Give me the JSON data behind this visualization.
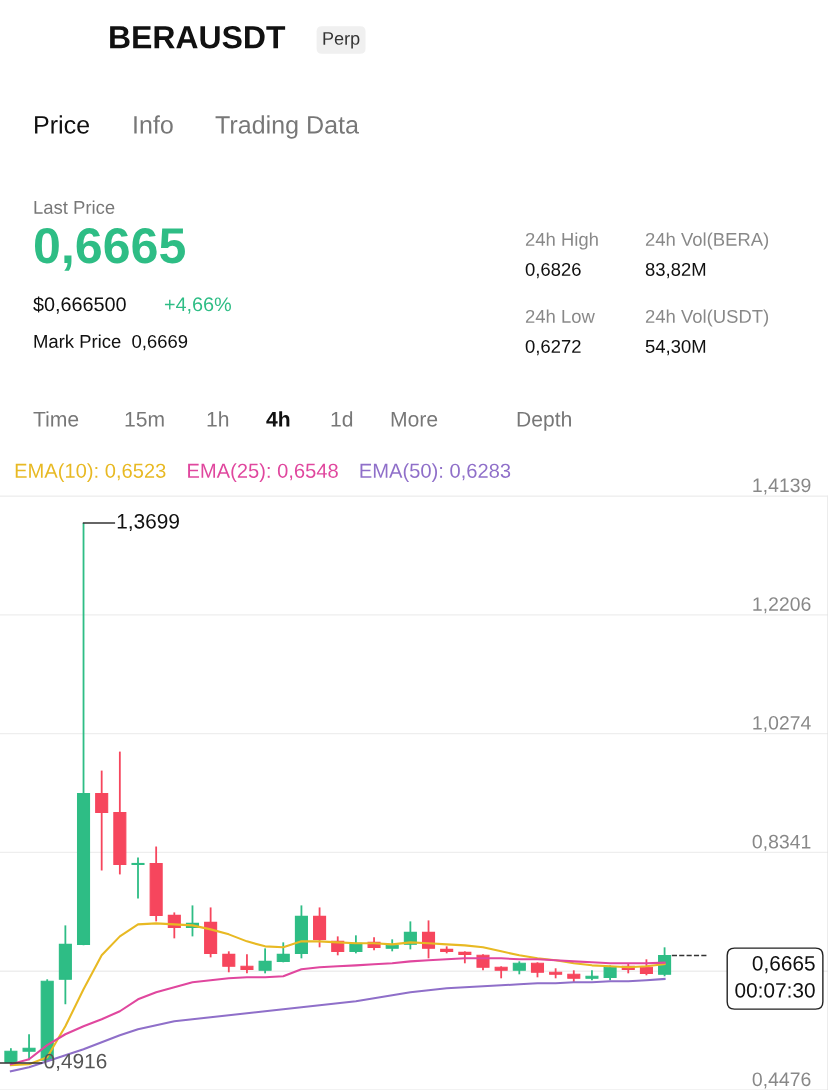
{
  "chart_data": {
    "type": "candlestick",
    "title": "BERAUSDT",
    "subtitle": "Perp",
    "categories": [
      null,
      null,
      null,
      null,
      null,
      null,
      null,
      null,
      null,
      null,
      null,
      null,
      null,
      null,
      null,
      null,
      null,
      null,
      null,
      null,
      null,
      null,
      null,
      null,
      null,
      null,
      null,
      null,
      null,
      null,
      null,
      null,
      null,
      null,
      null,
      null,
      null
    ],
    "ohlc": [
      [
        0.4929,
        0.5156,
        0.4916,
        0.5107
      ],
      [
        0.5107,
        0.5383,
        0.4961,
        0.5156
      ],
      [
        0.4961,
        0.6277,
        0.4961,
        0.6244
      ],
      [
        0.6277,
        0.7154,
        0.5871,
        0.6845
      ],
      [
        0.6845,
        1.3699,
        0.6829,
        0.9298
      ],
      [
        0.9298,
        0.9672,
        0.8047,
        0.899
      ],
      [
        0.899,
        0.9981,
        0.7983,
        0.8145
      ],
      [
        0.8145,
        0.8259,
        0.7593,
        0.8161
      ],
      [
        0.8161,
        0.8437,
        0.7219,
        0.7317
      ],
      [
        0.7317,
        0.7365,
        0.6943,
        0.7122
      ],
      [
        0.7122,
        0.7479,
        0.6975,
        0.7187
      ],
      [
        0.7203,
        0.7446,
        0.6634,
        0.6699
      ],
      [
        0.6683,
        0.6732,
        0.6391,
        0.6488
      ],
      [
        0.6488,
        0.6683,
        0.6374,
        0.6439
      ],
      [
        0.6423,
        0.678,
        0.6374,
        0.6569
      ],
      [
        0.6569,
        0.6878,
        0.6553,
        0.6683
      ],
      [
        0.6699,
        0.7479,
        0.6618,
        0.73
      ],
      [
        0.73,
        0.7446,
        0.6797,
        0.6927
      ],
      [
        0.6894,
        0.6975,
        0.6667,
        0.6732
      ],
      [
        0.6732,
        0.6992,
        0.6699,
        0.6862
      ],
      [
        0.6878,
        0.6959,
        0.6748,
        0.6797
      ],
      [
        0.6781,
        0.6927,
        0.6732,
        0.683
      ],
      [
        0.6846,
        0.7219,
        0.6764,
        0.704
      ],
      [
        0.704,
        0.7235,
        0.6618,
        0.6781
      ],
      [
        0.6764,
        0.6813,
        0.6699,
        0.6732
      ],
      [
        0.6715,
        0.6732,
        0.6537,
        0.6683
      ],
      [
        0.6667,
        0.6683,
        0.6423,
        0.6472
      ],
      [
        0.6472,
        0.6488,
        0.6293,
        0.6423
      ],
      [
        0.6423,
        0.6569,
        0.6358,
        0.6537
      ],
      [
        0.6537,
        0.6553,
        0.6309,
        0.6391
      ],
      [
        0.6391,
        0.6456,
        0.6293,
        0.6358
      ],
      [
        0.6358,
        0.6423,
        0.6228,
        0.6293
      ],
      [
        0.6293,
        0.6423,
        0.6261,
        0.6326
      ],
      [
        0.6309,
        0.6504,
        0.6261,
        0.6472
      ],
      [
        0.6488,
        0.6537,
        0.6374,
        0.6439
      ],
      [
        0.6472,
        0.6602,
        0.6342,
        0.6374
      ],
      [
        0.6358,
        0.6797,
        0.6326,
        0.6665
      ]
    ],
    "colors": [
      "#2ebd85",
      "#2ebd85",
      "#2ebd85",
      "#2ebd85",
      "#2ebd85",
      "#f6465d",
      "#f6465d",
      "#2ebd85",
      "#f6465d",
      "#f6465d",
      "#2ebd85",
      "#f6465d",
      "#f6465d",
      "#f6465d",
      "#2ebd85",
      "#2ebd85",
      "#2ebd85",
      "#f6465d",
      "#f6465d",
      "#2ebd85",
      "#f6465d",
      "#2ebd85",
      "#2ebd85",
      "#f6465d",
      "#f6465d",
      "#f6465d",
      "#f6465d",
      "#f6465d",
      "#2ebd85",
      "#f6465d",
      "#f6465d",
      "#f6465d",
      "#2ebd85",
      "#2ebd85",
      "#f6465d",
      "#f6465d",
      "#2ebd85"
    ],
    "series": [
      {
        "name": "EMA(10): 0,6523",
        "type": "line",
        "color": "#e8b923",
        "values": [
          0.488,
          0.4896,
          0.501,
          0.5513,
          0.6114,
          0.6667,
          0.6975,
          0.717,
          0.7187,
          0.717,
          0.7154,
          0.7089,
          0.7008,
          0.6894,
          0.6813,
          0.6797,
          0.6894,
          0.6894,
          0.6878,
          0.6862,
          0.6862,
          0.6845,
          0.6878,
          0.6862,
          0.6845,
          0.6829,
          0.6797,
          0.6732,
          0.6667,
          0.6618,
          0.6586,
          0.6537,
          0.6504,
          0.6488,
          0.6472,
          0.6488,
          0.6523
        ]
      },
      {
        "name": "EMA(25): 0,6548",
        "type": "line",
        "color": "#e0479e",
        "values": [
          0.4896,
          0.4977,
          0.5205,
          0.5383,
          0.5513,
          0.5627,
          0.5757,
          0.5952,
          0.6066,
          0.6147,
          0.6228,
          0.6261,
          0.6293,
          0.6309,
          0.6309,
          0.6326,
          0.6439,
          0.6472,
          0.6488,
          0.6504,
          0.6521,
          0.6537,
          0.6569,
          0.6586,
          0.6602,
          0.6618,
          0.6618,
          0.6618,
          0.6602,
          0.6602,
          0.6586,
          0.6569,
          0.6553,
          0.6537,
          0.6537,
          0.6537,
          0.6548
        ]
      },
      {
        "name": "EMA(50): 0,6283",
        "type": "line",
        "color": "#8f6fc9",
        "values": [
          0.4782,
          0.4847,
          0.4945,
          0.5042,
          0.514,
          0.5254,
          0.5367,
          0.5465,
          0.553,
          0.5595,
          0.5627,
          0.566,
          0.5692,
          0.5725,
          0.5757,
          0.579,
          0.5822,
          0.5855,
          0.5887,
          0.592,
          0.5968,
          0.6017,
          0.6066,
          0.6098,
          0.6131,
          0.6147,
          0.6163,
          0.6179,
          0.6196,
          0.6212,
          0.6212,
          0.6228,
          0.6228,
          0.6244,
          0.6244,
          0.6261,
          0.6283
        ]
      }
    ],
    "ylim": [
      0.4476,
      1.4139
    ],
    "yticks": [
      {
        "value": 0.4476,
        "label": "0,4476"
      },
      {
        "value": 0.6408,
        "label": null
      },
      {
        "value": 0.8341,
        "label": "0,8341"
      },
      {
        "value": 1.0274,
        "label": "1,0274"
      },
      {
        "value": 1.2206,
        "label": "1,2206"
      },
      {
        "value": 1.4139,
        "label": "1,4139"
      }
    ],
    "tick_labels": "y",
    "grid": "y",
    "legend": "top",
    "ref_lines": [
      {
        "axis": "y",
        "value": 0.6665,
        "label": "0,6665\n00:07:30",
        "line_style": "dashed",
        "color": "#333333"
      }
    ],
    "annotations": [
      "Price",
      "Info",
      "Trading Data",
      "Last Price",
      "0,6665",
      "$0,666500",
      "+4,66%",
      "Mark Price  0,6669",
      "24h High",
      "0,6826",
      "24h Vol(BERA)",
      "83,82M",
      "24h Low",
      "0,6272",
      "24h Vol(USDT)",
      "54,30M",
      "Time",
      "15m",
      "1h",
      "4h",
      "1d",
      "More",
      "Depth",
      "1,3699",
      "0,4916"
    ]
  }
}
